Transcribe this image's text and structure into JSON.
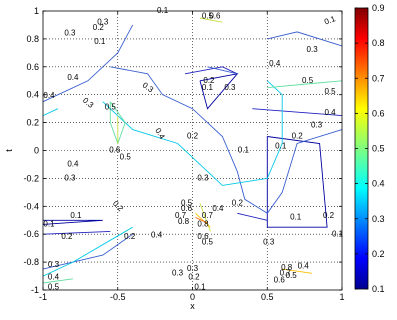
{
  "chart_data": {
    "type": "contour",
    "xlabel": "x",
    "ylabel": "t",
    "xlim": [
      -1,
      1
    ],
    "ylim": [
      -1,
      1
    ],
    "xticks": [
      "-1",
      "-0.5",
      "0",
      "0.5",
      "1"
    ],
    "yticks": [
      "-1",
      "-0.8",
      "-0.6",
      "-0.4",
      "-0.2",
      "0",
      "0.2",
      "0.4",
      "0.6",
      "0.8",
      "1"
    ],
    "grid": true,
    "colormap": "jet",
    "colorbar": {
      "range": [
        0.1,
        0.9
      ],
      "ticks": [
        "0.1",
        "0.2",
        "0.3",
        "0.4",
        "0.5",
        "0.6",
        "0.7",
        "0.8",
        "0.9"
      ]
    },
    "contour_levels": [
      0.1,
      0.2,
      0.3,
      0.4,
      0.5,
      0.6,
      0.7,
      0.8
    ],
    "level_colors": {
      "0.1": "#0000a0",
      "0.2": "#2020c0",
      "0.3": "#3a5fd0",
      "0.4": "#00c8e8",
      "0.5": "#60e0a0",
      "0.6": "#c8e040",
      "0.7": "#ffc000",
      "0.8": "#ff6000"
    },
    "contour_lines": [
      {
        "level": 0.1,
        "points": [
          [
            0.5,
            0.1
          ],
          [
            0.85,
            0.05
          ],
          [
            0.9,
            -0.55
          ],
          [
            0.5,
            -0.55
          ],
          [
            0.5,
            0.1
          ]
        ]
      },
      {
        "level": 0.1,
        "points": [
          [
            0.05,
            0.5
          ],
          [
            0.3,
            0.55
          ],
          [
            0.1,
            0.3
          ],
          [
            0.05,
            0.5
          ]
        ]
      },
      {
        "level": 0.1,
        "points": [
          [
            -1,
            -0.53
          ],
          [
            -0.6,
            -0.5
          ],
          [
            -1,
            -0.5
          ]
        ]
      },
      {
        "level": 0.2,
        "points": [
          [
            0.4,
            0.3
          ],
          [
            1,
            0.25
          ]
        ]
      },
      {
        "level": 0.2,
        "points": [
          [
            -0.05,
            0.55
          ],
          [
            0.2,
            0.6
          ],
          [
            0.3,
            0.55
          ]
        ]
      },
      {
        "level": 0.2,
        "points": [
          [
            -1,
            -0.6
          ],
          [
            -0.55,
            -0.58
          ]
        ]
      },
      {
        "level": 0.2,
        "points": [
          [
            0.3,
            -0.45
          ],
          [
            0.5,
            -0.5
          ]
        ]
      },
      {
        "level": 0.3,
        "points": [
          [
            -1,
            0.35
          ],
          [
            -0.7,
            0.5
          ],
          [
            -0.5,
            0.7
          ],
          [
            -0.4,
            0.9
          ]
        ]
      },
      {
        "level": 0.3,
        "points": [
          [
            -0.55,
            0.6
          ],
          [
            -0.3,
            0.55
          ],
          [
            -0.2,
            0.4
          ],
          [
            0,
            0.3
          ],
          [
            0.2,
            0.1
          ],
          [
            0.3,
            -0.15
          ],
          [
            0.35,
            -0.35
          ],
          [
            0.5,
            -0.45
          ],
          [
            0.6,
            -0.3
          ],
          [
            0.7,
            0.05
          ],
          [
            1,
            0.15
          ]
        ]
      },
      {
        "level": 0.3,
        "points": [
          [
            0.1,
            0.6
          ],
          [
            0.3,
            0.55
          ]
        ]
      },
      {
        "level": 0.3,
        "points": [
          [
            0.5,
            0.8
          ],
          [
            0.7,
            0.85
          ],
          [
            1,
            0.75
          ]
        ]
      },
      {
        "level": 0.3,
        "points": [
          [
            -1,
            -0.85
          ],
          [
            -0.6,
            -0.75
          ],
          [
            -0.4,
            -0.6
          ]
        ]
      },
      {
        "level": 0.4,
        "points": [
          [
            -1,
            0.25
          ],
          [
            -0.9,
            0.3
          ]
        ]
      },
      {
        "level": 0.4,
        "points": [
          [
            -0.6,
            0.35
          ],
          [
            -0.4,
            0.15
          ],
          [
            -0.1,
            0.05
          ],
          [
            0.1,
            -0.15
          ],
          [
            0.2,
            -0.25
          ],
          [
            0.5,
            -0.2
          ],
          [
            0.6,
            0.05
          ],
          [
            0.6,
            0.4
          ],
          [
            0.5,
            0.5
          ]
        ]
      },
      {
        "level": 0.4,
        "points": [
          [
            -1,
            -0.9
          ],
          [
            -0.8,
            -0.8
          ],
          [
            -0.4,
            -0.55
          ]
        ]
      },
      {
        "level": 0.5,
        "points": [
          [
            -0.55,
            0.35
          ],
          [
            -0.45,
            0.2
          ],
          [
            -0.5,
            0.05
          ],
          [
            -0.55,
            0.2
          ],
          [
            -0.55,
            0.35
          ]
        ]
      },
      {
        "level": 0.5,
        "points": [
          [
            0.5,
            0.45
          ],
          [
            0.8,
            0.48
          ],
          [
            1,
            0.5
          ]
        ]
      },
      {
        "level": 0.5,
        "points": [
          [
            -1,
            -0.95
          ],
          [
            -0.8,
            -0.92
          ]
        ]
      },
      {
        "level": 0.6,
        "points": [
          [
            -0.5,
            0.25
          ],
          [
            -0.5,
            0.05
          ]
        ]
      },
      {
        "level": 0.6,
        "points": [
          [
            0.05,
            0.95
          ],
          [
            0.2,
            0.92
          ]
        ]
      },
      {
        "level": 0.6,
        "points": [
          [
            0.05,
            -0.38
          ],
          [
            0.12,
            -0.58
          ]
        ]
      },
      {
        "level": 0.7,
        "points": [
          [
            0.02,
            -0.45
          ],
          [
            0.12,
            -0.55
          ]
        ]
      },
      {
        "level": 0.7,
        "points": [
          [
            0.6,
            -0.85
          ],
          [
            0.8,
            -0.88
          ]
        ]
      },
      {
        "level": 0.8,
        "points": [
          [
            0.02,
            -0.48
          ],
          [
            0.1,
            -0.52
          ]
        ]
      }
    ],
    "contour_labels": [
      {
        "text": "0.1",
        "x": 0.92,
        "y": 0.93,
        "rot": 20
      },
      {
        "text": "0.3",
        "x": 0.8,
        "y": 0.72
      },
      {
        "text": "0.4",
        "x": 0.55,
        "y": 0.62
      },
      {
        "text": "0.5",
        "x": 0.77,
        "y": 0.5
      },
      {
        "text": "0.5",
        "x": 0.92,
        "y": 0.42
      },
      {
        "text": "0.4",
        "x": 0.92,
        "y": 0.27
      },
      {
        "text": "0.3",
        "x": 0.83,
        "y": 0.18
      },
      {
        "text": "0.2",
        "x": 0.7,
        "y": 0.1
      },
      {
        "text": "0.1",
        "x": 0.59,
        "y": 0.03
      },
      {
        "text": "0.1",
        "x": 0.34,
        "y": 0.0
      },
      {
        "text": "0.1",
        "x": 0.69,
        "y": -0.48
      },
      {
        "text": "0.2",
        "x": 0.91,
        "y": -0.47
      },
      {
        "text": "0.3",
        "x": 0.51,
        "y": -0.66
      },
      {
        "text": "0.2",
        "x": 0.3,
        "y": -0.38
      },
      {
        "text": "0.3",
        "x": 0.07,
        "y": -0.2
      },
      {
        "text": "0.2",
        "x": 0.0,
        "y": 0.1
      },
      {
        "text": "0.1",
        "x": 0.1,
        "y": 0.45
      },
      {
        "text": "0.2",
        "x": 0.11,
        "y": 0.5
      },
      {
        "text": "0.3",
        "x": 0.25,
        "y": 0.45
      },
      {
        "text": "0.3",
        "x": -0.3,
        "y": 0.45,
        "rot": -35
      },
      {
        "text": "0.4",
        "x": -0.22,
        "y": 0.12,
        "rot": -60
      },
      {
        "text": "0.5",
        "x": -0.55,
        "y": 0.31
      },
      {
        "text": "0.6",
        "x": -0.52,
        "y": 0.0
      },
      {
        "text": "0.5",
        "x": -0.45,
        "y": -0.05
      },
      {
        "text": "0.4",
        "x": -0.96,
        "y": 0.39
      },
      {
        "text": "0.3",
        "x": -0.7,
        "y": 0.34,
        "rot": -40
      },
      {
        "text": "0.4",
        "x": -0.8,
        "y": 0.52
      },
      {
        "text": "0.3",
        "x": -0.82,
        "y": -0.2
      },
      {
        "text": "0.4",
        "x": -0.8,
        "y": -0.1
      },
      {
        "text": "0.3",
        "x": -0.82,
        "y": 0.84
      },
      {
        "text": "0.1",
        "x": -0.62,
        "y": 0.78
      },
      {
        "text": "0.2",
        "x": -0.63,
        "y": 0.88
      },
      {
        "text": "0.3",
        "x": -0.6,
        "y": 0.92
      },
      {
        "text": "0.1",
        "x": -0.2,
        "y": 1.0
      },
      {
        "text": "0.5",
        "x": 0.1,
        "y": 0.96
      },
      {
        "text": "0.6",
        "x": 0.15,
        "y": 0.96
      },
      {
        "text": "0.2",
        "x": -0.5,
        "y": -0.4,
        "rot": -45
      },
      {
        "text": "0.1",
        "x": -0.78,
        "y": -0.47
      },
      {
        "text": "0.1",
        "x": -0.96,
        "y": -0.53
      },
      {
        "text": "0.2",
        "x": -0.84,
        "y": -0.62
      },
      {
        "text": "0.3",
        "x": -0.93,
        "y": -0.82
      },
      {
        "text": "0.4",
        "x": -0.93,
        "y": -0.91
      },
      {
        "text": "0.5",
        "x": -0.93,
        "y": -0.98
      },
      {
        "text": "0.2",
        "x": -0.42,
        "y": -0.62
      },
      {
        "text": "0.3",
        "x": -0.1,
        "y": -0.88
      },
      {
        "text": "0.4",
        "x": -0.24,
        "y": -0.61
      },
      {
        "text": "0.5",
        "x": -0.04,
        "y": -0.38
      },
      {
        "text": "0.6",
        "x": -0.04,
        "y": -0.42
      },
      {
        "text": "0.7",
        "x": -0.08,
        "y": -0.47
      },
      {
        "text": "0.8",
        "x": -0.06,
        "y": -0.51
      },
      {
        "text": "0.8",
        "x": 0.07,
        "y": -0.53
      },
      {
        "text": "0.7",
        "x": 0.1,
        "y": -0.47
      },
      {
        "text": "0.6",
        "x": 0.07,
        "y": -0.62
      },
      {
        "text": "0.5",
        "x": 0.1,
        "y": -0.66
      },
      {
        "text": "0.4",
        "x": 0.17,
        "y": -0.42
      },
      {
        "text": "0.3",
        "x": 0.0,
        "y": -0.85
      },
      {
        "text": "0.2",
        "x": 0.01,
        "y": -0.91
      },
      {
        "text": "0.1",
        "x": 0.05,
        "y": -0.98
      },
      {
        "text": "0.8",
        "x": 0.63,
        "y": -0.84
      },
      {
        "text": "0.7",
        "x": 0.62,
        "y": -0.88
      },
      {
        "text": "0.6",
        "x": 0.58,
        "y": -0.93
      },
      {
        "text": "0.5",
        "x": 0.66,
        "y": -0.9
      },
      {
        "text": "0.4",
        "x": 0.74,
        "y": -0.83
      },
      {
        "text": "0.1",
        "x": 0.97,
        "y": -0.6
      }
    ]
  }
}
